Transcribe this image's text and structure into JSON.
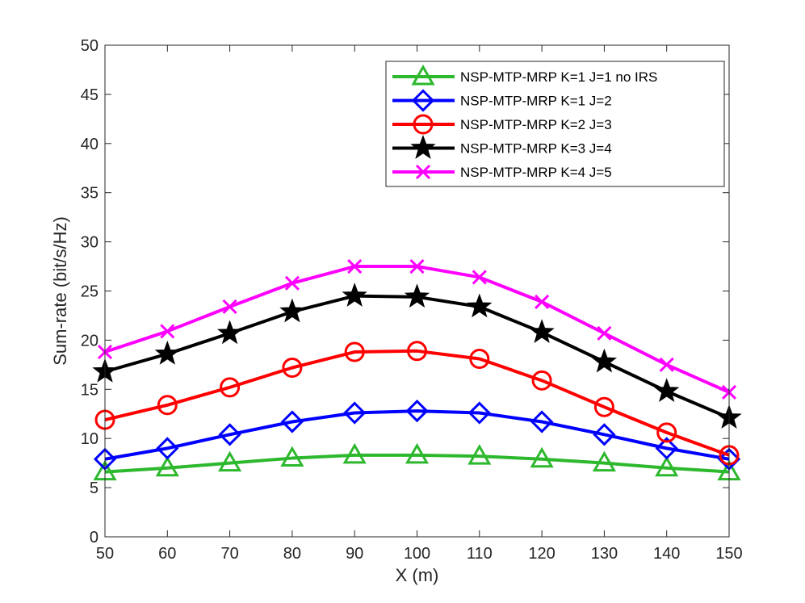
{
  "chart_data": {
    "type": "line",
    "title": "",
    "xlabel": "X (m)",
    "ylabel": "Sum-rate (bit/s/Hz)",
    "xlim": [
      50,
      150
    ],
    "ylim": [
      0,
      50
    ],
    "xticks": [
      "50",
      "60",
      "70",
      "80",
      "90",
      "100",
      "110",
      "120",
      "130",
      "140",
      "150"
    ],
    "yticks": [
      "0",
      "5",
      "10",
      "15",
      "20",
      "25",
      "30",
      "35",
      "40",
      "45",
      "50"
    ],
    "grid": false,
    "legend_position": "top-right",
    "x": [
      50,
      60,
      70,
      80,
      90,
      100,
      110,
      120,
      130,
      140,
      150
    ],
    "series": [
      {
        "name": "NSP-MTP-MRP K=1 J=1 no IRS",
        "color": "#2db82d",
        "marker": "triangle",
        "values": [
          6.6,
          7.0,
          7.5,
          8.0,
          8.3,
          8.3,
          8.2,
          7.9,
          7.5,
          7.0,
          6.6
        ]
      },
      {
        "name": "NSP-MTP-MRP K=1 J=2",
        "color": "#0000ff",
        "marker": "diamond",
        "values": [
          7.9,
          9.0,
          10.4,
          11.7,
          12.6,
          12.8,
          12.6,
          11.7,
          10.4,
          9.0,
          7.9
        ]
      },
      {
        "name": "NSP-MTP-MRP K=2 J=3",
        "color": "#ff0000",
        "marker": "circle",
        "values": [
          11.9,
          13.4,
          15.2,
          17.2,
          18.8,
          18.9,
          18.1,
          15.9,
          13.2,
          10.6,
          8.3
        ]
      },
      {
        "name": "NSP-MTP-MRP K=3 J=4",
        "color": "#000000",
        "marker": "star",
        "values": [
          16.8,
          18.6,
          20.7,
          22.9,
          24.5,
          24.4,
          23.4,
          20.8,
          17.8,
          14.8,
          12.1
        ]
      },
      {
        "name": "NSP-MTP-MRP K=4 J=5",
        "color": "#ff00ff",
        "marker": "x",
        "values": [
          18.8,
          20.9,
          23.4,
          25.8,
          27.5,
          27.5,
          26.4,
          23.9,
          20.7,
          17.5,
          14.7
        ]
      }
    ]
  }
}
